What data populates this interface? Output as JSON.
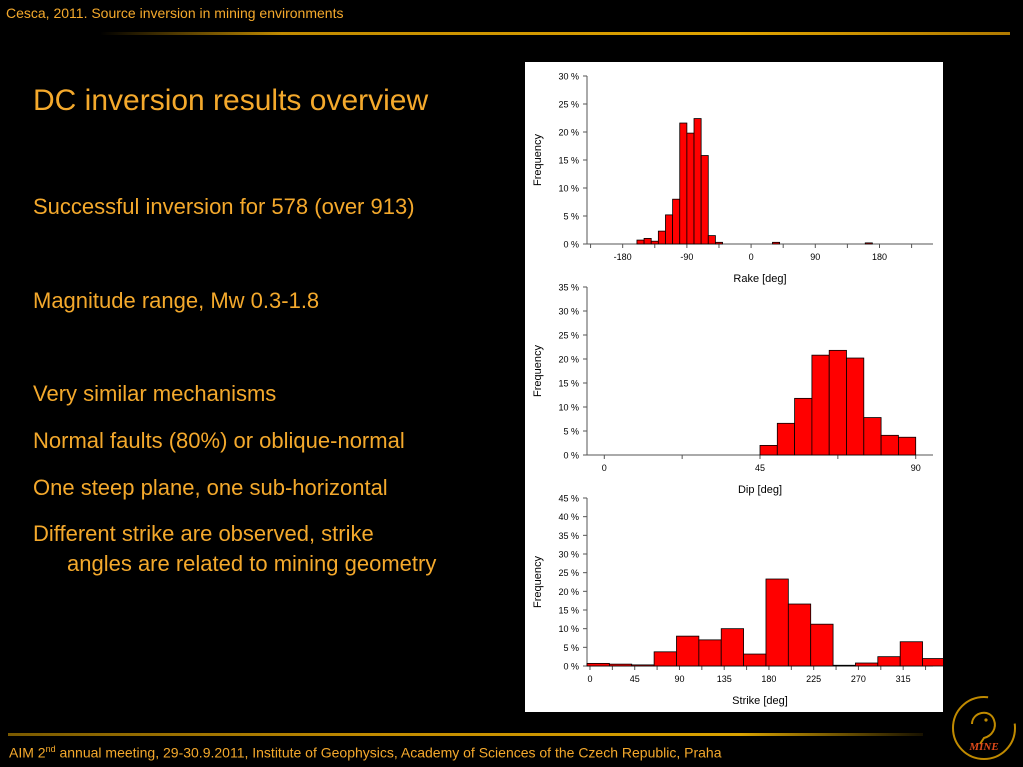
{
  "header": {
    "title": "Cesca, 2011. Source inversion in mining environments"
  },
  "slide": {
    "title": "DC inversion results overview",
    "bullets": [
      "Successful inversion for 578 (over 913)",
      "Magnitude range, Mw 0.3-1.8",
      "Very similar mechanisms",
      "Normal faults (80%) or oblique-normal",
      "One steep plane, one sub-horizontal",
      "Different strike are observed, strike",
      "angles are related to mining geometry"
    ]
  },
  "footer": {
    "prefix": "AIM 2",
    "sup": "nd",
    "rest": " annual meeting, 29-30.9.2011, Institute of Geophysics, Academy of Sciences of the Czech Republic, Praha"
  },
  "logo": {
    "text": "MINE"
  },
  "colors": {
    "accent": "#f4a92c",
    "bar": "#ff0000",
    "background": "#000000"
  },
  "chart_data": [
    {
      "type": "bar",
      "ylabel": "Frequency",
      "xlabel": "Rake [deg]",
      "xlim": [
        -230,
        255
      ],
      "xticks": [
        -180,
        -90,
        0,
        90,
        180
      ],
      "ylim": [
        0,
        30
      ],
      "yticks": [
        "0 %",
        "5 %",
        "10 %",
        "15 %",
        "20 %",
        "25 %",
        "30 %"
      ],
      "bin_width": 10,
      "bin_starts": [
        -160,
        -150,
        -140,
        -130,
        -120,
        -110,
        -100,
        -90,
        -80,
        -70,
        -60,
        -50,
        30,
        160
      ],
      "values": [
        0.7,
        1.0,
        0.5,
        2.3,
        5.2,
        8.0,
        21.6,
        19.8,
        22.4,
        15.8,
        1.5,
        0.3,
        0.3,
        0.2
      ]
    },
    {
      "type": "bar",
      "ylabel": "Frequency",
      "xlabel": "Dip [deg]",
      "xlim": [
        -5,
        95
      ],
      "xticks": [
        0,
        45,
        90
      ],
      "ylim": [
        0,
        35
      ],
      "yticks": [
        "0 %",
        "5 %",
        "10 %",
        "15 %",
        "20 %",
        "25 %",
        "30 %",
        "35 %"
      ],
      "bin_width": 5,
      "bin_starts": [
        45,
        50,
        55,
        60,
        65,
        70,
        75,
        80,
        85
      ],
      "values": [
        2.0,
        6.6,
        11.8,
        20.8,
        21.8,
        20.2,
        7.8,
        4.1,
        3.7
      ]
    },
    {
      "type": "bar",
      "ylabel": "Frequency",
      "xlabel": "Strike [deg]",
      "xlim": [
        -3,
        345
      ],
      "xticks": [
        0,
        45,
        90,
        135,
        180,
        225,
        270,
        315
      ],
      "ylim": [
        0,
        45
      ],
      "yticks": [
        "0 %",
        "5 %",
        "10 %",
        "15 %",
        "20 %",
        "25 %",
        "30 %",
        "35 %",
        "40 %",
        "45 %"
      ],
      "bin_width": 22.5,
      "bin_starts": [
        -3,
        19.5,
        42,
        64.5,
        87,
        109.5,
        132,
        154.5,
        177,
        199.5,
        222,
        244.5,
        267,
        289.5,
        312,
        334.5
      ],
      "values": [
        0.7,
        0.5,
        0.3,
        3.8,
        8.0,
        7.0,
        10.0,
        3.2,
        23.3,
        16.6,
        11.2,
        0.2,
        0.8,
        2.5,
        6.5,
        2.0
      ]
    }
  ]
}
